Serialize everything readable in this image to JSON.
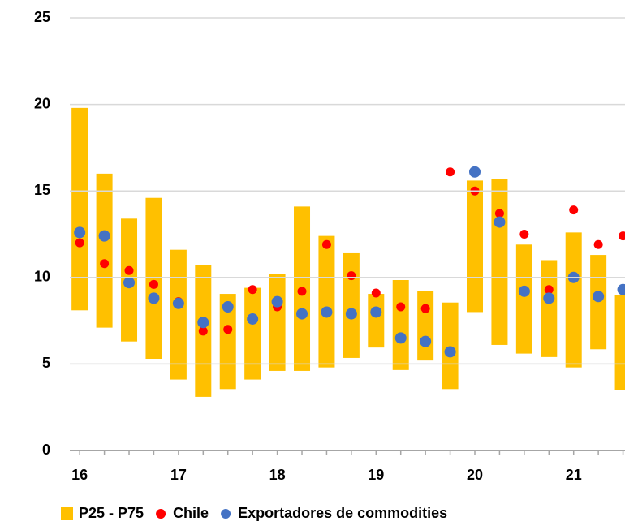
{
  "chart_data": {
    "type": "range-bar-scatter",
    "x": [
      16,
      16.25,
      16.5,
      16.75,
      17,
      17.25,
      17.5,
      17.75,
      18,
      18.25,
      18.5,
      18.75,
      19,
      19.25,
      19.5,
      19.75,
      20,
      20.25,
      20.5,
      20.75,
      21,
      21.25,
      21.5
    ],
    "series": [
      {
        "name": "P25 - P75",
        "color": "#FFC000",
        "low": [
          8.1,
          7.1,
          6.3,
          5.3,
          4.1,
          3.1,
          3.55,
          4.1,
          4.6,
          4.6,
          4.8,
          5.35,
          5.95,
          4.65,
          5.2,
          3.55,
          8.0,
          6.1,
          5.6,
          5.4,
          4.8,
          5.85,
          3.5
        ],
        "high": [
          19.8,
          16.0,
          13.4,
          14.6,
          11.6,
          10.7,
          9.05,
          9.4,
          10.2,
          14.1,
          12.4,
          11.4,
          9.05,
          9.85,
          9.2,
          8.55,
          15.6,
          15.7,
          11.9,
          11.0,
          12.6,
          11.3,
          9.0
        ]
      },
      {
        "name": "Chile",
        "color": "#FF0000",
        "values": [
          12.0,
          10.8,
          10.4,
          9.6,
          8.6,
          6.9,
          7.0,
          9.3,
          8.3,
          9.2,
          11.9,
          10.1,
          9.1,
          8.3,
          8.2,
          16.1,
          15.0,
          13.7,
          12.5,
          9.3,
          13.9,
          11.9,
          12.4
        ]
      },
      {
        "name": "Exportadores de commodities",
        "color": "#4472C4",
        "values": [
          12.6,
          12.4,
          9.7,
          8.8,
          8.5,
          7.4,
          8.3,
          7.6,
          8.6,
          7.9,
          8.0,
          7.9,
          8.0,
          6.5,
          6.3,
          5.7,
          16.1,
          13.2,
          9.2,
          8.8,
          10.0,
          8.9,
          9.3
        ]
      }
    ],
    "xlim": [
      15.9,
      21.52
    ],
    "xticks": [
      16,
      17,
      18,
      19,
      20,
      21
    ],
    "ylim": [
      0,
      25
    ],
    "yticks": [
      0,
      5,
      10,
      15,
      20,
      25
    ],
    "grid": true
  }
}
